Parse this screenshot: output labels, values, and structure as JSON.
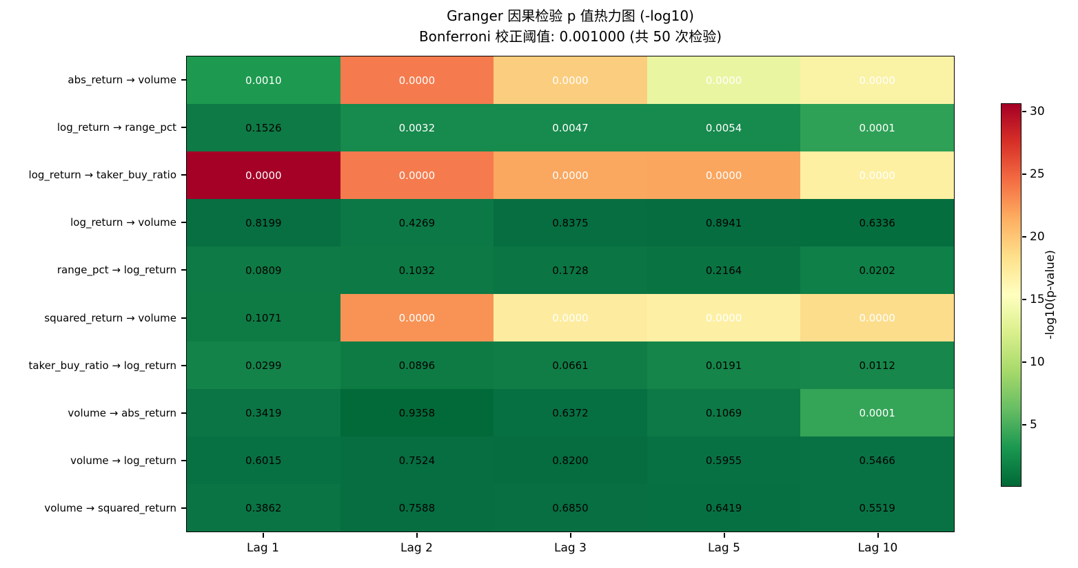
{
  "title": "Granger 因果检验 p 值热力图 (-log10)",
  "subtitle": "Bonferroni 校正阈值: 0.001000 (共 50 次检验)",
  "chart_data": {
    "type": "heatmap",
    "title": "Granger 因果检验 p 值热力图 (-log10)",
    "subtitle": "Bonferroni 校正阈值: 0.001000 (共 50 次检验)",
    "x_categories": [
      "Lag 1",
      "Lag 2",
      "Lag 3",
      "Lag 5",
      "Lag 10"
    ],
    "y_categories": [
      "abs_return → volume",
      "log_return → range_pct",
      "log_return → taker_buy_ratio",
      "log_return → volume",
      "range_pct → log_return",
      "squared_return → volume",
      "taker_buy_ratio → log_return",
      "volume → abs_return",
      "volume → log_return",
      "volume → squared_return"
    ],
    "cell_values": [
      [
        "0.0010",
        "0.0000",
        "0.0000",
        "0.0000",
        "0.0000"
      ],
      [
        "0.1526",
        "0.0032",
        "0.0047",
        "0.0054",
        "0.0001"
      ],
      [
        "0.0000",
        "0.0000",
        "0.0000",
        "0.0000",
        "0.0000"
      ],
      [
        "0.8199",
        "0.4269",
        "0.8375",
        "0.8941",
        "0.6336"
      ],
      [
        "0.0809",
        "0.1032",
        "0.1728",
        "0.2164",
        "0.0202"
      ],
      [
        "0.1071",
        "0.0000",
        "0.0000",
        "0.0000",
        "0.0000"
      ],
      [
        "0.0299",
        "0.0896",
        "0.0661",
        "0.0191",
        "0.0112"
      ],
      [
        "0.3419",
        "0.9358",
        "0.6372",
        "0.1069",
        "0.0001"
      ],
      [
        "0.6015",
        "0.7524",
        "0.8200",
        "0.5955",
        "0.5466"
      ],
      [
        "0.3862",
        "0.7588",
        "0.6850",
        "0.6419",
        "0.5519"
      ]
    ],
    "cell_colors": [
      [
        "#1d9a4f",
        "#f57b4e",
        "#fbcd7e",
        "#e9f5a1",
        "#faf2a5"
      ],
      [
        "#0e7a45",
        "#178a4d",
        "#178a4d",
        "#178a4d",
        "#2ea156"
      ],
      [
        "#a50026",
        "#f57b4e",
        "#faa75f",
        "#faa65f",
        "#fdf0a2"
      ],
      [
        "#076f42",
        "#0c7846",
        "#066e41",
        "#056d40",
        "#056e3f"
      ],
      [
        "#0e7a45",
        "#0d7945",
        "#0b7543",
        "#0a7342",
        "#0f8048"
      ],
      [
        "#0e7b45",
        "#f89355",
        "#fdec9f",
        "#fdf0a5",
        "#fcdd8c"
      ],
      [
        "#14834a",
        "#0e7b45",
        "#107d47",
        "#158549",
        "#17874b"
      ],
      [
        "#0b7545",
        "#026a39",
        "#077043",
        "#0d7946",
        "#34a457"
      ],
      [
        "#087143",
        "#066e41",
        "#056d40",
        "#087143",
        "#097244"
      ],
      [
        "#0a7444",
        "#066e41",
        "#076f42",
        "#077042",
        "#097244"
      ]
    ],
    "cell_text_colors": [
      [
        "#ffffff",
        "#ffffff",
        "#ffffff",
        "#ffffff",
        "#ffffff"
      ],
      [
        "#000000",
        "#ffffff",
        "#ffffff",
        "#ffffff",
        "#ffffff"
      ],
      [
        "#ffffff",
        "#ffffff",
        "#ffffff",
        "#ffffff",
        "#ffffff"
      ],
      [
        "#000000",
        "#000000",
        "#000000",
        "#000000",
        "#000000"
      ],
      [
        "#000000",
        "#000000",
        "#000000",
        "#000000",
        "#000000"
      ],
      [
        "#000000",
        "#ffffff",
        "#ffffff",
        "#ffffff",
        "#ffffff"
      ],
      [
        "#000000",
        "#000000",
        "#000000",
        "#000000",
        "#000000"
      ],
      [
        "#000000",
        "#000000",
        "#000000",
        "#000000",
        "#ffffff"
      ],
      [
        "#000000",
        "#000000",
        "#000000",
        "#000000",
        "#000000"
      ],
      [
        "#000000",
        "#000000",
        "#000000",
        "#000000",
        "#000000"
      ]
    ],
    "colorbar": {
      "label": "-log10(p-value)",
      "ticks": [
        30,
        25,
        20,
        15,
        10,
        5
      ],
      "vmin": 0.03,
      "vmax": 30.64,
      "gradient_top_to_bottom": [
        "#a50026",
        "#d73027",
        "#f46d43",
        "#fdae61",
        "#fee08b",
        "#ffffbf",
        "#d9ef8b",
        "#a6d96a",
        "#66bd63",
        "#1a9850",
        "#006837"
      ]
    },
    "layout": {
      "grid": "off",
      "colorbar_position": "right",
      "annotations": "p-values printed in each cell"
    }
  }
}
